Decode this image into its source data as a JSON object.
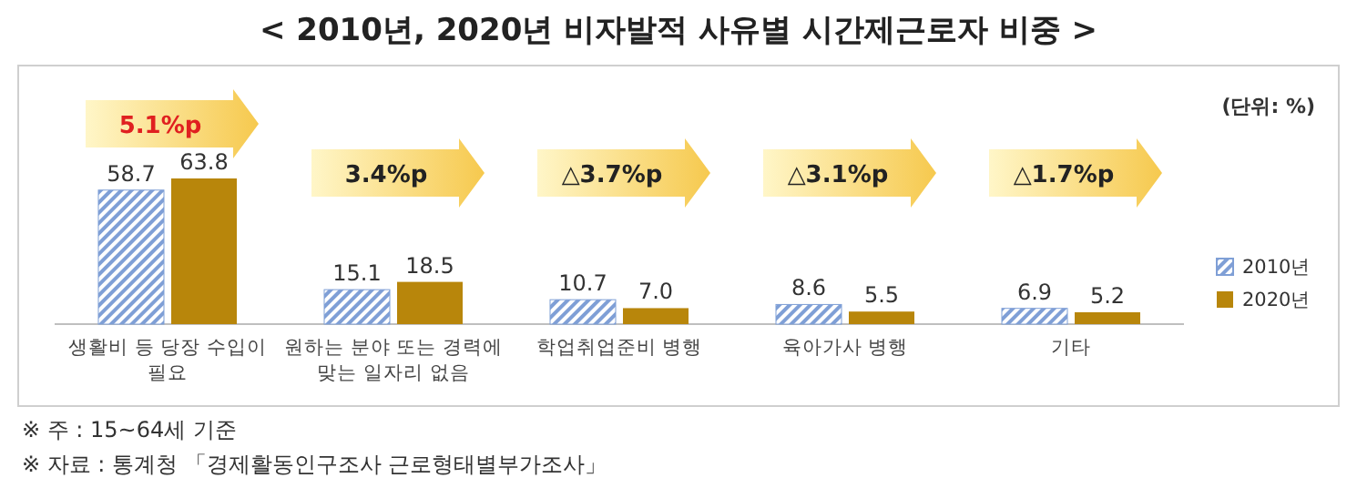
{
  "chart_data": {
    "type": "bar",
    "title": "< 2010년, 2020년 비자발적 사유별 시간제근로자 비중 >",
    "categories": [
      "생활비 등 당장 수입이 필요",
      "원하는 분야 또는 경력에 맞는 일자리 없음",
      "학업취업준비 병행",
      "육아가사 병행",
      "기타"
    ],
    "series": [
      {
        "name": "2010년",
        "color": "#7f9fd6",
        "values": [
          58.7,
          15.1,
          10.7,
          8.6,
          6.9
        ],
        "value_labels": [
          "58.7",
          "15.1",
          "10.7",
          "8.6",
          "6.9"
        ]
      },
      {
        "name": "2020년",
        "color": "#b8860b",
        "values": [
          63.8,
          18.5,
          7.0,
          5.5,
          5.2
        ],
        "value_labels": [
          "63.8",
          "18.5",
          "7.0",
          "5.5",
          "5.2"
        ]
      }
    ],
    "legend": "right",
    "annotations": [
      "5.1%p",
      "3.4%p",
      "△3.7%p",
      "△3.1%p",
      "△1.7%p",
      "(단위: %)",
      "※ 주 : 15~64세 기준",
      "※ 자료 : 통계청 「경제활동인구조사 근로형태별부가조사」"
    ]
  }
}
